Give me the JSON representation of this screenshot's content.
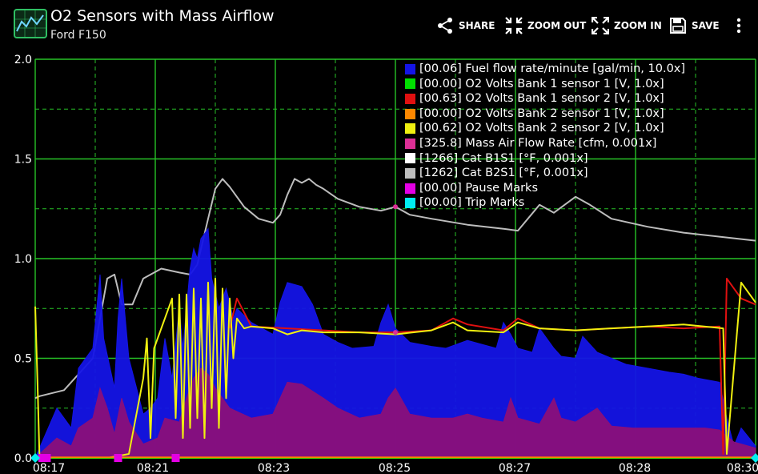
{
  "app": {
    "title": "O2 Sensors with Mass Airflow",
    "subtitle": "Ford F150"
  },
  "actions": [
    {
      "label": "SHARE",
      "icon": "share-icon"
    },
    {
      "label": "ZOOM OUT",
      "icon": "zoom-out-icon"
    },
    {
      "label": "ZOOM IN",
      "icon": "zoom-in-icon"
    },
    {
      "label": "SAVE",
      "icon": "save-icon"
    }
  ],
  "overflow_icon": "more-vert-icon",
  "colors": {
    "grid": "#27c227",
    "axis_text": "#ffffff",
    "fuel": "#1414e6",
    "o2_b1s1": "#00e000",
    "o2_b1s2": "#e01010",
    "o2_b2s1": "#ff8800",
    "o2_b2s2": "#f0f010",
    "maf": "#dd2f96",
    "cat_b1s1": "#ffffff",
    "cat_b2s1": "#bdbdbd",
    "pause": "#e400e4",
    "trip": "#00f0f0"
  },
  "chart_data": {
    "type": "line",
    "title": "",
    "xlabel": "",
    "ylabel": "",
    "ylim": [
      0,
      2.0
    ],
    "y_ticks": [
      "0.0",
      "0.5",
      "1.0",
      "1.5",
      "2.0"
    ],
    "x_ticks": [
      "08:17",
      "08:21",
      "08:23",
      "08:25",
      "08:27",
      "08:28",
      "08:30"
    ],
    "grid": true,
    "legend_position": "top-right",
    "legend": [
      {
        "label": "[00.06] Fuel flow rate/minute [gal/min, 10.0x]",
        "color": "#1414e6"
      },
      {
        "label": "[00.00] O2 Volts Bank 1 sensor 1 [V, 1.0x]",
        "color": "#00e000"
      },
      {
        "label": "[00.63] O2 Volts Bank 1 sensor 2 [V, 1.0x]",
        "color": "#e01010"
      },
      {
        "label": "[00.00] O2 Volts Bank 2 sensor 1 [V, 1.0x]",
        "color": "#ff8800"
      },
      {
        "label": "[00.62] O2 Volts Bank 2 sensor 2 [V, 1.0x]",
        "color": "#f0f010"
      },
      {
        "label": "[325.8] Mass Air Flow Rate [cfm, 0.001x]",
        "color": "#dd2f96"
      },
      {
        "label": "[1266] Cat B1S1 [°F, 0.001x]",
        "color": "#ffffff"
      },
      {
        "label": "[1262] Cat B2S1 [°F, 0.001x]",
        "color": "#bdbdbd"
      },
      {
        "label": "[00.00] Pause Marks",
        "color": "#e400e4"
      },
      {
        "label": "[00.00] Trip Marks",
        "color": "#00f0f0"
      }
    ],
    "series": [
      {
        "name": "Cat B2S1",
        "kind": "line",
        "color": "#bdbdbd",
        "x": [
          0,
          0.006,
          0.04,
          0.08,
          0.09,
          0.1,
          0.11,
          0.12,
          0.135,
          0.15,
          0.175,
          0.2,
          0.215,
          0.225,
          0.24,
          0.25,
          0.26,
          0.27,
          0.29,
          0.31,
          0.33,
          0.34,
          0.35,
          0.36,
          0.37,
          0.38,
          0.39,
          0.4,
          0.42,
          0.45,
          0.48,
          0.5,
          0.52,
          0.55,
          0.6,
          0.65,
          0.67,
          0.7,
          0.72,
          0.75,
          0.77,
          0.8,
          0.85,
          0.9,
          0.95,
          1.0
        ],
        "y": [
          0.3,
          0.31,
          0.34,
          0.5,
          0.7,
          0.9,
          0.92,
          0.77,
          0.77,
          0.9,
          0.95,
          0.93,
          0.92,
          0.97,
          1.2,
          1.35,
          1.4,
          1.36,
          1.26,
          1.2,
          1.18,
          1.22,
          1.32,
          1.4,
          1.38,
          1.4,
          1.37,
          1.35,
          1.3,
          1.26,
          1.24,
          1.26,
          1.22,
          1.2,
          1.17,
          1.15,
          1.14,
          1.27,
          1.23,
          1.31,
          1.27,
          1.2,
          1.16,
          1.13,
          1.11,
          1.09
        ]
      },
      {
        "name": "Fuel flow rate/minute",
        "kind": "area",
        "color": "#1414e6",
        "x": [
          0,
          0.03,
          0.05,
          0.06,
          0.08,
          0.09,
          0.095,
          0.11,
          0.115,
          0.12,
          0.13,
          0.15,
          0.16,
          0.17,
          0.18,
          0.19,
          0.2,
          0.205,
          0.215,
          0.22,
          0.225,
          0.23,
          0.24,
          0.245,
          0.255,
          0.265,
          0.275,
          0.28,
          0.3,
          0.33,
          0.34,
          0.35,
          0.37,
          0.38,
          0.385,
          0.39,
          0.4,
          0.42,
          0.44,
          0.47,
          0.48,
          0.49,
          0.5,
          0.52,
          0.55,
          0.57,
          0.6,
          0.62,
          0.64,
          0.65,
          0.66,
          0.67,
          0.69,
          0.7,
          0.72,
          0.73,
          0.75,
          0.76,
          0.78,
          0.8,
          0.82,
          0.85,
          0.88,
          0.9,
          0.92,
          0.95,
          0.96,
          0.97,
          0.98,
          1.0
        ],
        "y": [
          0,
          0.25,
          0.15,
          0.45,
          0.55,
          0.92,
          0.6,
          0.35,
          0.7,
          0.9,
          0.5,
          0.22,
          0.25,
          0.3,
          0.6,
          0.4,
          0.75,
          0.55,
          0.95,
          1.05,
          1.0,
          1.1,
          1.15,
          0.9,
          0.75,
          0.85,
          0.7,
          0.75,
          0.68,
          0.62,
          0.78,
          0.88,
          0.86,
          0.8,
          0.77,
          0.72,
          0.62,
          0.58,
          0.55,
          0.56,
          0.68,
          0.77,
          0.65,
          0.58,
          0.56,
          0.55,
          0.59,
          0.57,
          0.55,
          0.68,
          0.62,
          0.55,
          0.53,
          0.65,
          0.55,
          0.51,
          0.5,
          0.61,
          0.53,
          0.5,
          0.47,
          0.45,
          0.43,
          0.42,
          0.4,
          0.38,
          0.2,
          0.06,
          0.15,
          0.06
        ]
      },
      {
        "name": "Mass Air Flow Rate",
        "kind": "area",
        "color": "#8a0f7a",
        "x": [
          0,
          0.03,
          0.05,
          0.06,
          0.08,
          0.09,
          0.1,
          0.11,
          0.12,
          0.13,
          0.15,
          0.17,
          0.18,
          0.2,
          0.21,
          0.22,
          0.23,
          0.24,
          0.25,
          0.27,
          0.3,
          0.33,
          0.34,
          0.35,
          0.37,
          0.4,
          0.42,
          0.45,
          0.48,
          0.49,
          0.5,
          0.52,
          0.55,
          0.58,
          0.6,
          0.62,
          0.65,
          0.66,
          0.67,
          0.7,
          0.72,
          0.73,
          0.75,
          0.78,
          0.8,
          0.83,
          0.86,
          0.9,
          0.93,
          0.95,
          0.97,
          1.0
        ],
        "y": [
          0,
          0.1,
          0.06,
          0.15,
          0.2,
          0.35,
          0.25,
          0.12,
          0.3,
          0.18,
          0.07,
          0.1,
          0.2,
          0.18,
          0.3,
          0.4,
          0.45,
          0.42,
          0.35,
          0.25,
          0.2,
          0.22,
          0.3,
          0.38,
          0.37,
          0.3,
          0.25,
          0.2,
          0.22,
          0.3,
          0.35,
          0.22,
          0.2,
          0.2,
          0.22,
          0.2,
          0.18,
          0.3,
          0.2,
          0.17,
          0.3,
          0.2,
          0.18,
          0.25,
          0.16,
          0.15,
          0.15,
          0.15,
          0.15,
          0.14,
          0.08,
          0.05
        ]
      },
      {
        "name": "O2 Volts Bank 1 sensor 2",
        "kind": "line",
        "color": "#e01010",
        "x": [
          0.27,
          0.28,
          0.3,
          0.35,
          0.4,
          0.45,
          0.5,
          0.55,
          0.58,
          0.6,
          0.65,
          0.67,
          0.7,
          0.75,
          0.8,
          0.85,
          0.9,
          0.95,
          0.955,
          0.96,
          0.98,
          1.0
        ],
        "y": [
          0.65,
          0.8,
          0.66,
          0.65,
          0.64,
          0.63,
          0.63,
          0.64,
          0.7,
          0.67,
          0.64,
          0.7,
          0.65,
          0.64,
          0.65,
          0.66,
          0.65,
          0.66,
          0.02,
          0.9,
          0.8,
          0.77
        ]
      },
      {
        "name": "O2 Volts Bank 2 sensor 2",
        "kind": "line",
        "color": "#f0f010",
        "x": [
          0,
          0.003,
          0.006,
          0.07,
          0.1,
          0.13,
          0.15,
          0.155,
          0.16,
          0.165,
          0.19,
          0.195,
          0.2,
          0.205,
          0.21,
          0.215,
          0.22,
          0.225,
          0.23,
          0.235,
          0.24,
          0.245,
          0.25,
          0.255,
          0.26,
          0.265,
          0.27,
          0.275,
          0.28,
          0.29,
          0.3,
          0.33,
          0.35,
          0.37,
          0.4,
          0.45,
          0.5,
          0.55,
          0.58,
          0.6,
          0.65,
          0.67,
          0.7,
          0.75,
          0.8,
          0.85,
          0.9,
          0.955,
          0.96,
          0.98,
          1.0
        ],
        "y": [
          0.76,
          0.4,
          0,
          0,
          0,
          0.02,
          0.4,
          0.6,
          0.1,
          0.55,
          0.8,
          0.2,
          0.82,
          0.1,
          0.82,
          0.15,
          0.85,
          0.2,
          0.8,
          0.1,
          0.88,
          0.25,
          0.9,
          0.15,
          0.85,
          0.3,
          0.8,
          0.5,
          0.7,
          0.65,
          0.66,
          0.65,
          0.62,
          0.64,
          0.63,
          0.63,
          0.62,
          0.64,
          0.68,
          0.64,
          0.63,
          0.68,
          0.65,
          0.64,
          0.65,
          0.66,
          0.67,
          0.65,
          0.02,
          0.88,
          0.78
        ]
      },
      {
        "name": "O2 Volts Bank 1 sensor 1",
        "kind": "line",
        "color": "#00e000",
        "x": [
          0,
          1.0
        ],
        "y": [
          0,
          0
        ]
      },
      {
        "name": "O2 Volts Bank 2 sensor 1",
        "kind": "line",
        "color": "#ff8800",
        "x": [
          0,
          1.0
        ],
        "y": [
          0.003,
          0.003
        ]
      }
    ],
    "pause_marks_x": [
      0.01,
      0.016,
      0.115,
      0.195
    ],
    "trip_marks_x": [
      0,
      1.0
    ],
    "maf_markers": [
      {
        "x": 0.5,
        "y": 1.26
      },
      {
        "x": 0.5,
        "y": 0.63
      }
    ]
  }
}
